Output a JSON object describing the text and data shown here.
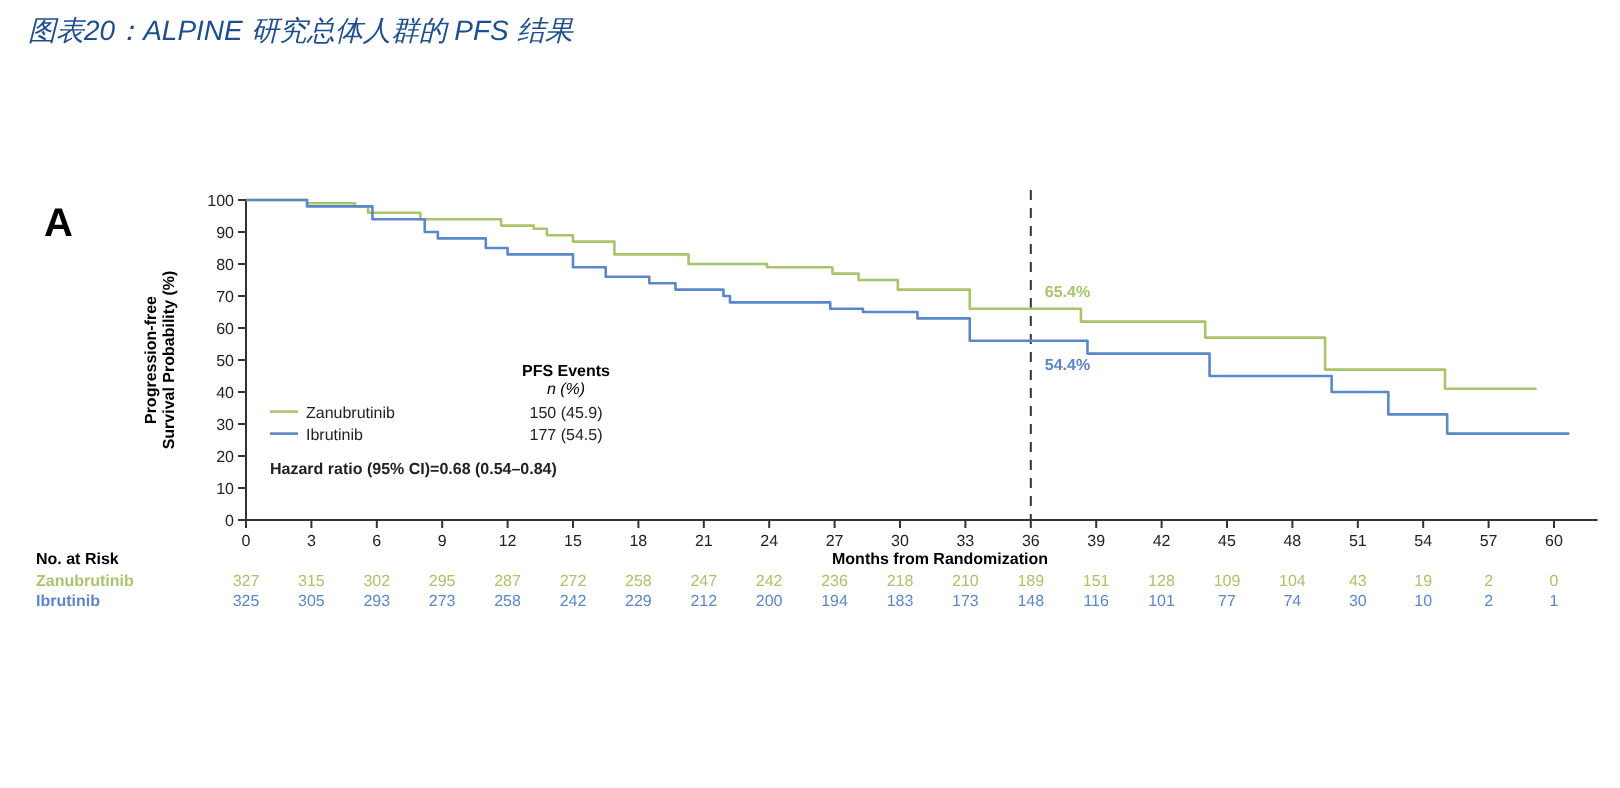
{
  "chart_data": {
    "type": "step",
    "title": "图表20：ALPINE 研究总体人群的 PFS 结果",
    "xlabel": "Months from Randomization",
    "ylabel": "Progression-free Survival Probability (%)",
    "xlim": [
      0,
      62
    ],
    "xticks": [
      0,
      3,
      6,
      9,
      12,
      15,
      18,
      21,
      24,
      27,
      30,
      33,
      36,
      39,
      42,
      45,
      48,
      51,
      54,
      57,
      60
    ],
    "ylim": [
      0,
      100
    ],
    "yticks": [
      0,
      10,
      20,
      30,
      40,
      50,
      60,
      70,
      80,
      90,
      100
    ],
    "legend": "bottom left",
    "series": [
      {
        "name": "Zanubrutinib",
        "color": "#a9c46c",
        "x": [
          0,
          2.8,
          5,
          5.6,
          8,
          11.7,
          13.2,
          13.8,
          15,
          16.9,
          20.3,
          23.9,
          26.9,
          28.1,
          29.9,
          33.2,
          38.3,
          44,
          49.5,
          55,
          59.2
        ],
        "values": [
          100,
          99,
          98,
          96,
          94,
          92,
          91,
          89,
          87,
          83,
          80,
          79,
          77,
          75,
          72,
          66,
          62,
          57,
          47,
          41,
          41
        ]
      },
      {
        "name": "Ibrutinib",
        "color": "#5b87c9",
        "x": [
          0,
          2.8,
          5.8,
          8.2,
          8.8,
          11,
          12,
          15,
          16.5,
          18.5,
          19.7,
          21.9,
          22.2,
          26.8,
          28.3,
          30.8,
          33.2,
          38.6,
          44.2,
          49.8,
          52.4,
          55.1,
          60.7
        ],
        "values": [
          100,
          98,
          94,
          90,
          88,
          85,
          83,
          79,
          76,
          74,
          72,
          70,
          68,
          66,
          65,
          63,
          56,
          52,
          45,
          40,
          33,
          27,
          27
        ]
      }
    ],
    "ref_lines": [
      {
        "axis": "x",
        "value": 36,
        "line_style": "dashed",
        "color": "#333333"
      }
    ],
    "annotations": [
      "A",
      "PFS Events",
      "n (%)",
      "150 (45.9)",
      "177 (54.5)",
      "Hazard ratio (95% CI)=0.68 (0.54–0.84)",
      {
        "text": "65.4%",
        "x": 36,
        "y": 65.4
      },
      {
        "text": "54.4%",
        "x": 36,
        "y": 54.4
      },
      "No. at Risk",
      "Zanubrutinib",
      "Ibrutinib",
      "327",
      "315",
      "302",
      "295",
      "287",
      "272",
      "258",
      "247",
      "242",
      "236",
      "218",
      "210",
      "189",
      "151",
      "128",
      "109",
      "104",
      "43",
      "19",
      "2",
      "0",
      "325",
      "305",
      "293",
      "273",
      "258",
      "242",
      "229",
      "212",
      "200",
      "194",
      "183",
      "173",
      "148",
      "116",
      "101",
      "77",
      "74",
      "30",
      "10",
      "2",
      "1"
    ]
  }
}
